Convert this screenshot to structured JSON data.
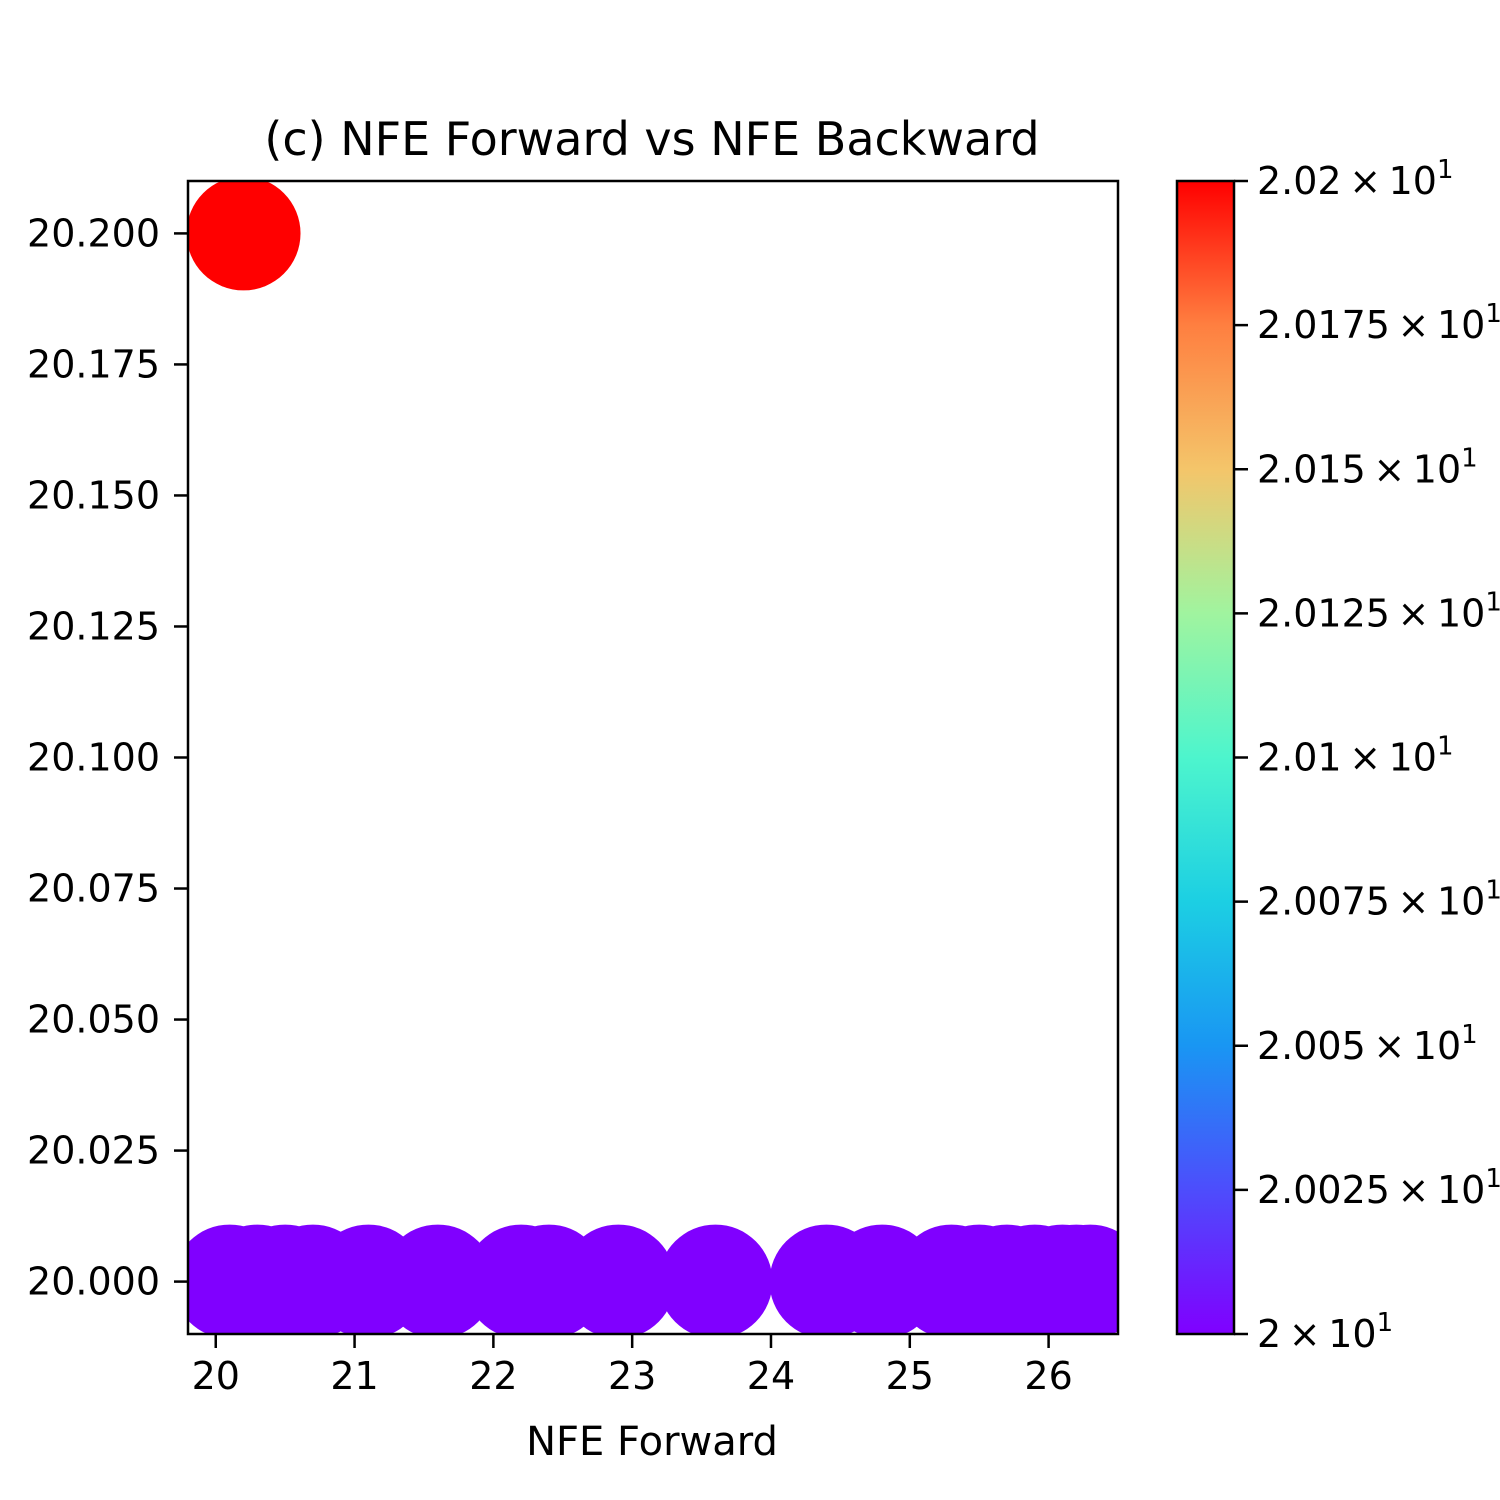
{
  "chart_data": {
    "type": "scatter",
    "title": "(c) NFE Forward vs NFE Backward",
    "xlabel": "NFE Forward",
    "ylabel": "",
    "xlim": [
      19.8,
      26.5
    ],
    "ylim": [
      19.99,
      20.21
    ],
    "xticks": [
      20,
      21,
      22,
      23,
      24,
      25,
      26
    ],
    "xtick_labels": [
      "20",
      "21",
      "22",
      "23",
      "24",
      "25",
      "26"
    ],
    "yticks": [
      20.0,
      20.025,
      20.05,
      20.075,
      20.1,
      20.125,
      20.15,
      20.175,
      20.2
    ],
    "ytick_labels": [
      "20.000",
      "20.025",
      "20.050",
      "20.075",
      "20.100",
      "20.125",
      "20.150",
      "20.175",
      "20.200"
    ],
    "grid": false,
    "colormap": "rainbow",
    "points": [
      {
        "x": 20.2,
        "y": 20.2
      },
      {
        "x": 20.1,
        "y": 20.0
      },
      {
        "x": 20.3,
        "y": 20.0
      },
      {
        "x": 20.5,
        "y": 20.0
      },
      {
        "x": 20.7,
        "y": 20.0
      },
      {
        "x": 21.1,
        "y": 20.0
      },
      {
        "x": 21.6,
        "y": 20.0
      },
      {
        "x": 22.2,
        "y": 20.0
      },
      {
        "x": 22.4,
        "y": 20.0
      },
      {
        "x": 22.9,
        "y": 20.0
      },
      {
        "x": 23.6,
        "y": 20.0
      },
      {
        "x": 24.4,
        "y": 20.0
      },
      {
        "x": 24.8,
        "y": 20.0
      },
      {
        "x": 25.3,
        "y": 20.0
      },
      {
        "x": 25.5,
        "y": 20.0
      },
      {
        "x": 25.7,
        "y": 20.0
      },
      {
        "x": 25.9,
        "y": 20.0
      },
      {
        "x": 26.1,
        "y": 20.0
      },
      {
        "x": 26.2,
        "y": 20.0
      },
      {
        "x": 26.3,
        "y": 20.0
      }
    ],
    "colorbar": {
      "range": [
        20.0,
        20.2
      ],
      "ticks": [
        {
          "value": 20.0,
          "mantissa": "2",
          "exponent": "1"
        },
        {
          "value": 20.025,
          "mantissa": "2.0025",
          "exponent": "1"
        },
        {
          "value": 20.05,
          "mantissa": "2.005",
          "exponent": "1"
        },
        {
          "value": 20.075,
          "mantissa": "2.0075",
          "exponent": "1"
        },
        {
          "value": 20.1,
          "mantissa": "2.01",
          "exponent": "1"
        },
        {
          "value": 20.125,
          "mantissa": "2.0125",
          "exponent": "1"
        },
        {
          "value": 20.15,
          "mantissa": "2.015",
          "exponent": "1"
        },
        {
          "value": 20.175,
          "mantissa": "2.0175",
          "exponent": "1"
        },
        {
          "value": 20.2,
          "mantissa": "2.02",
          "exponent": "1"
        }
      ]
    }
  }
}
